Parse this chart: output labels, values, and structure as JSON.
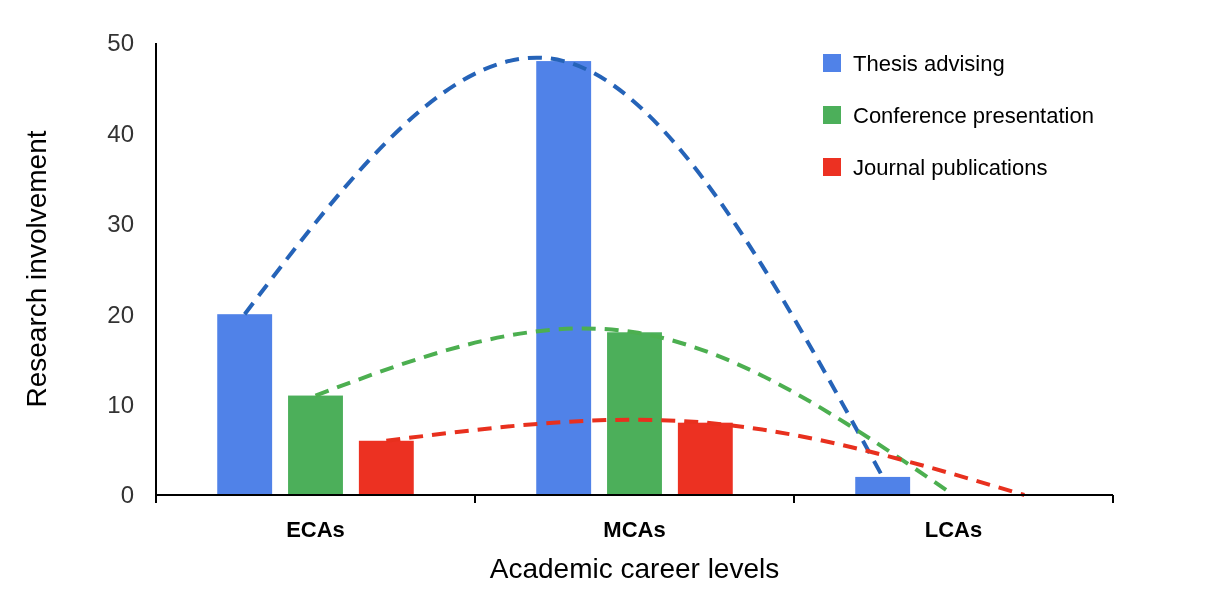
{
  "chart_data": {
    "type": "bar",
    "xlabel": "Academic career levels",
    "ylabel": "Research involvement",
    "categories": [
      "ECAs",
      "MCAs",
      "LCAs"
    ],
    "series": [
      {
        "name": "Thesis advising",
        "color": "#5082e8",
        "values": [
          20,
          48,
          2
        ]
      },
      {
        "name": "Conference presentation",
        "color": "#4caf5a",
        "values": [
          11,
          18,
          0
        ]
      },
      {
        "name": "Journal publications",
        "color": "#ec3122",
        "values": [
          6,
          8,
          0
        ]
      },
      {
        "type": "line",
        "color": "#2563b8",
        "line_style": "dashed",
        "values": [
          20,
          48,
          2
        ]
      },
      {
        "type": "line",
        "color": "#4caf50",
        "line_style": "dashed",
        "values": [
          11,
          18,
          0
        ]
      },
      {
        "type": "line",
        "color": "#e8301e",
        "line_style": "dashed",
        "values": [
          6,
          8,
          0
        ]
      }
    ],
    "ylim": [
      0,
      50
    ],
    "yticks": [
      0,
      10,
      20,
      30,
      40,
      50
    ],
    "grid": false,
    "legend": "top right"
  }
}
